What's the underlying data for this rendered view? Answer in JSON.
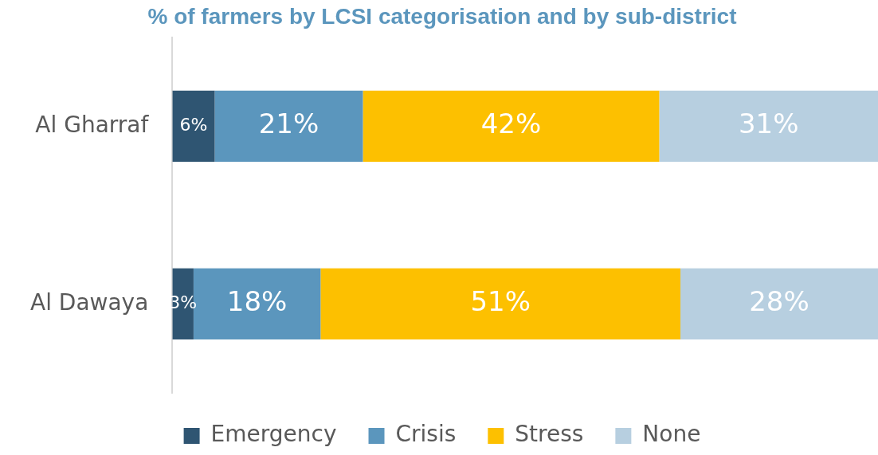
{
  "chart_data": {
    "type": "bar",
    "orientation": "horizontal",
    "stacked": true,
    "title": "% of farmers by LCSI categorisation and by sub-district",
    "categories": [
      "Al Gharraf",
      "Al Dawaya"
    ],
    "xlim": [
      0,
      100
    ],
    "tick_labels": "y",
    "grid": false,
    "legend": "bottom",
    "series": [
      {
        "name": "Emergency",
        "color": "#2f5572",
        "values": [
          6,
          3
        ],
        "value_labels": [
          "6%",
          "3%"
        ]
      },
      {
        "name": "Crisis",
        "color": "#5b96bd",
        "values": [
          21,
          18
        ],
        "value_labels": [
          "21%",
          "18%"
        ]
      },
      {
        "name": "Stress",
        "color": "#fdc000",
        "values": [
          42,
          51
        ],
        "value_labels": [
          "42%",
          "51%"
        ]
      },
      {
        "name": "None",
        "color": "#b7cfe0",
        "values": [
          31,
          28
        ],
        "value_labels": [
          "31%",
          "28%"
        ]
      }
    ]
  }
}
